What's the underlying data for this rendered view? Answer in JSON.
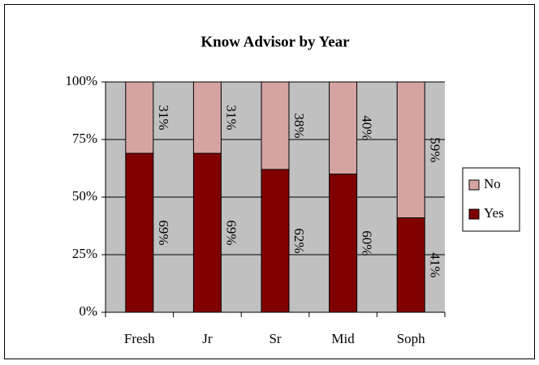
{
  "chart_data": {
    "type": "stacked_bar",
    "title": "Know Advisor by Year",
    "categories": [
      "Fresh",
      "Jr",
      "Sr",
      "Mid",
      "Soph"
    ],
    "series": [
      {
        "name": "Yes",
        "color": "#800000",
        "values": [
          69,
          69,
          62,
          60,
          41
        ],
        "value_labels": [
          "69%",
          "69%",
          "62%",
          "60%",
          "41%"
        ]
      },
      {
        "name": "No",
        "color": "#d6a3a3",
        "values": [
          31,
          31,
          38,
          40,
          59
        ],
        "value_labels": [
          "31%",
          "31%",
          "38%",
          "40%",
          "59%"
        ]
      }
    ],
    "ylim": [
      0,
      100
    ],
    "yticks": [
      {
        "value": 0,
        "label": "0%"
      },
      {
        "value": 25,
        "label": "25%"
      },
      {
        "value": 50,
        "label": "50%"
      },
      {
        "value": 75,
        "label": "75%"
      },
      {
        "value": 100,
        "label": "100%"
      }
    ],
    "grid": true,
    "legend": "right"
  }
}
